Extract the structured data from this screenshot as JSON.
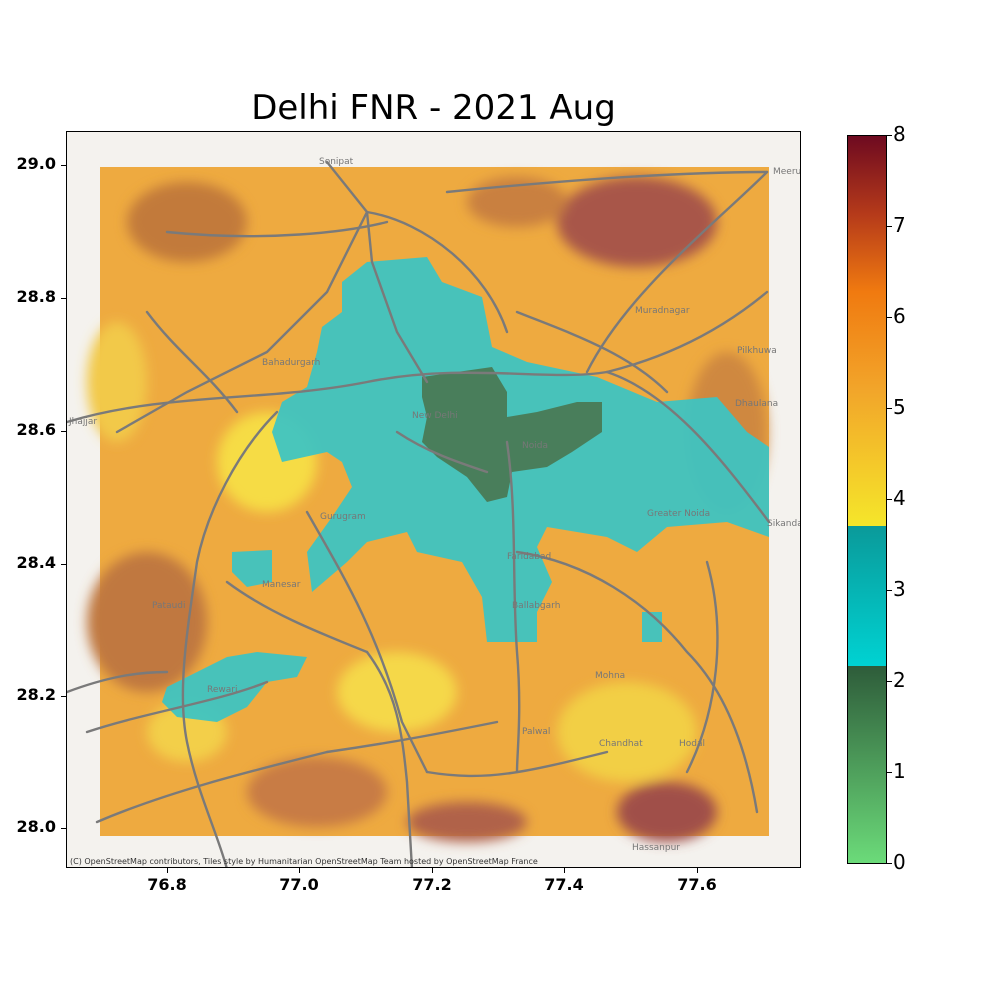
{
  "title": "Delhi FNR - 2021 Aug",
  "attribution": "(C) OpenStreetMap contributors, Tiles style by Humanitarian OpenStreetMap Team hosted by OpenStreetMap France",
  "x_ticks": [
    "76.8",
    "77.0",
    "77.2",
    "77.4",
    "77.6"
  ],
  "y_ticks": [
    "29.0",
    "28.8",
    "28.6",
    "28.4",
    "28.2",
    "28.0"
  ],
  "colorbar": {
    "ticks": [
      "0",
      "1",
      "2",
      "3",
      "4",
      "5",
      "6",
      "7",
      "8"
    ],
    "range": [
      0,
      8
    ],
    "segments": [
      {
        "from": 0,
        "to": 2.2,
        "color_low": "#6cdc7a",
        "color_high": "#2e5c3a"
      },
      {
        "from": 2.2,
        "to": 3.7,
        "color_low": "#00d2d2",
        "color_high": "#0a9a9a"
      },
      {
        "from": 3.7,
        "to": 8,
        "color_low": "#f5e62a",
        "color_high": "#6e0a20"
      }
    ]
  },
  "place_labels": [
    "Sonipat",
    "Meerut",
    "New Delhi",
    "Noida",
    "Gurugram",
    "Faridabad",
    "Greater Noida",
    "Bahadurgarh",
    "Jhajjar",
    "Manesar",
    "Pataudi",
    "Rewari",
    "Ballabgarh",
    "Palwal",
    "Hassanpur",
    "Sikandarabad",
    "Dhaulana",
    "Pilkhuwa",
    "Muradnagar",
    "Chandhat",
    "Mohna",
    "Hodal"
  ],
  "map_data": {
    "extent": {
      "lon": [
        76.65,
        77.76
      ],
      "lat": [
        27.94,
        29.05
      ]
    },
    "raster_extent": {
      "lon": [
        76.7,
        77.71
      ],
      "lat": [
        27.99,
        29.0
      ]
    },
    "colors": {
      "low_fnr": "#4a7a55",
      "mid_fnr": "#3bc4c4",
      "high_fnr": "#f2b338",
      "very_high_fnr": "#8a3a48",
      "roads": "#7a7a7a",
      "basemap": "#f4f2ee"
    }
  }
}
